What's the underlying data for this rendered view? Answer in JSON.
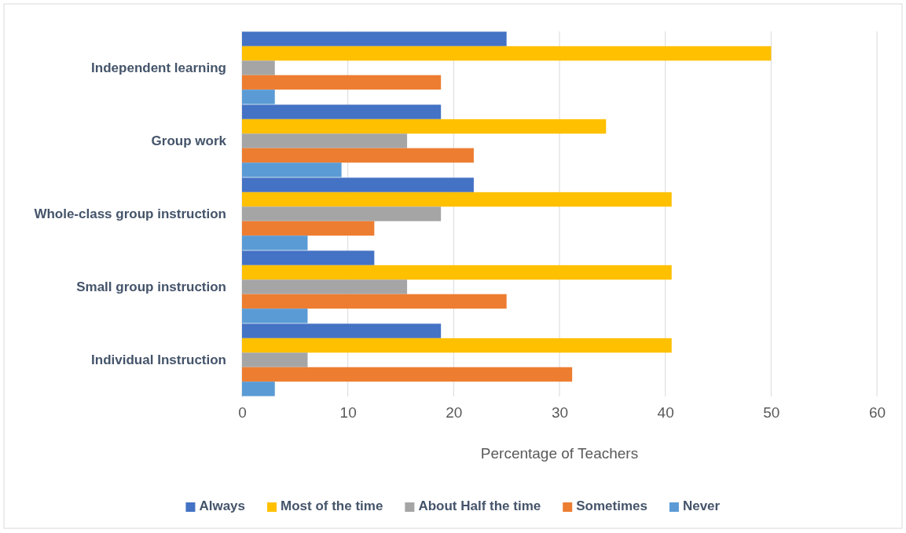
{
  "chart_data": {
    "type": "bar",
    "orientation": "horizontal",
    "xlabel": "Percentage of Teachers",
    "categories": [
      "Independent learning",
      "Group work",
      "Whole-class group instruction",
      "Small group instruction",
      "Individual Instruction"
    ],
    "series": [
      {
        "name": "Always",
        "color": "#4472c4",
        "values": [
          25,
          18.8,
          21.9,
          12.5,
          18.8
        ]
      },
      {
        "name": "Most of the time",
        "color": "#ffc000",
        "values": [
          50,
          34.4,
          40.6,
          40.6,
          40.6
        ]
      },
      {
        "name": "About Half the time",
        "color": "#a5a5a5",
        "values": [
          3.1,
          15.6,
          18.8,
          15.6,
          6.2
        ]
      },
      {
        "name": "Sometimes",
        "color": "#ed7d31",
        "values": [
          18.8,
          21.9,
          12.5,
          25,
          31.2
        ]
      },
      {
        "name": "Never",
        "color": "#5b9bd5",
        "values": [
          3.1,
          9.4,
          6.2,
          6.2,
          3.1
        ]
      }
    ],
    "xlim": [
      0,
      60
    ],
    "xticks": [
      0,
      10,
      20,
      30,
      40,
      50,
      60
    ],
    "grid": "x",
    "legend": "bottom"
  }
}
